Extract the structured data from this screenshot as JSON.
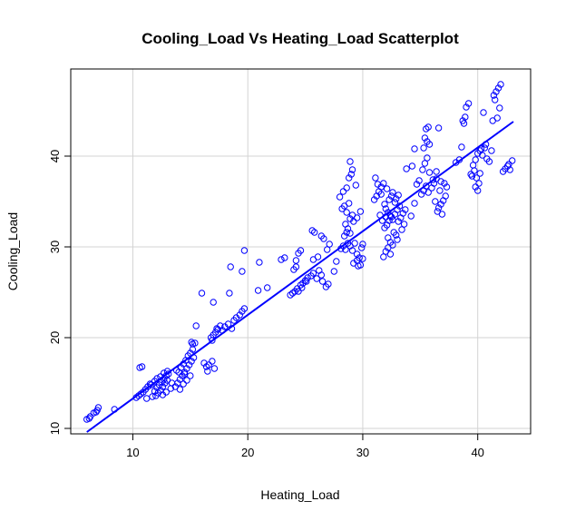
{
  "chart_data": {
    "type": "scatter",
    "title": "Cooling_Load Vs Heating_Load Scatterplot",
    "xlabel": "Heating_Load",
    "ylabel": "Cooling_Load",
    "xlim": [
      4.6,
      44.6
    ],
    "ylim": [
      9.4,
      49.6
    ],
    "xticks": [
      10,
      20,
      30,
      40
    ],
    "yticks": [
      10,
      20,
      30,
      40
    ],
    "grid": true,
    "point_color": "#0000ff",
    "line_color": "#0000ff",
    "regression_line": {
      "x": [
        6.0,
        43.1
      ],
      "y": [
        9.6,
        43.8
      ]
    },
    "points": [
      [
        6.0,
        11.0
      ],
      [
        6.3,
        11.3
      ],
      [
        6.6,
        11.7
      ],
      [
        6.9,
        12.0
      ],
      [
        7.0,
        12.3
      ],
      [
        6.2,
        11.1
      ],
      [
        6.8,
        11.8
      ],
      [
        8.4,
        12.1
      ],
      [
        10.3,
        13.4
      ],
      [
        10.5,
        13.6
      ],
      [
        10.7,
        13.8
      ],
      [
        10.9,
        14.0
      ],
      [
        11.1,
        14.3
      ],
      [
        11.3,
        14.6
      ],
      [
        11.5,
        14.9
      ],
      [
        11.7,
        13.5
      ],
      [
        11.9,
        14.1
      ],
      [
        12.1,
        14.5
      ],
      [
        12.3,
        14.8
      ],
      [
        12.5,
        15.1
      ],
      [
        12.7,
        15.4
      ],
      [
        12.9,
        15.8
      ],
      [
        13.1,
        16.0
      ],
      [
        12.0,
        13.6
      ],
      [
        12.2,
        13.9
      ],
      [
        12.4,
        14.2
      ],
      [
        12.6,
        14.6
      ],
      [
        12.8,
        15.0
      ],
      [
        13.0,
        15.3
      ],
      [
        11.6,
        14.8
      ],
      [
        11.9,
        15.2
      ],
      [
        12.1,
        15.5
      ],
      [
        12.4,
        15.7
      ],
      [
        12.7,
        16.1
      ],
      [
        13.0,
        16.3
      ],
      [
        13.3,
        14.4
      ],
      [
        12.9,
        14.0
      ],
      [
        12.6,
        13.7
      ],
      [
        13.4,
        15.0
      ],
      [
        11.2,
        13.3
      ],
      [
        10.6,
        16.7
      ],
      [
        10.8,
        16.8
      ],
      [
        13.7,
        14.6
      ],
      [
        13.9,
        15.0
      ],
      [
        14.1,
        15.4
      ],
      [
        14.3,
        15.8
      ],
      [
        14.5,
        16.2
      ],
      [
        14.7,
        16.6
      ],
      [
        14.9,
        17.0
      ],
      [
        15.1,
        17.4
      ],
      [
        15.3,
        17.8
      ],
      [
        14.0,
        16.2
      ],
      [
        14.2,
        16.7
      ],
      [
        14.4,
        17.1
      ],
      [
        14.6,
        17.5
      ],
      [
        14.8,
        18.0
      ],
      [
        15.0,
        18.3
      ],
      [
        15.2,
        18.7
      ],
      [
        14.1,
        14.3
      ],
      [
        14.4,
        14.9
      ],
      [
        14.7,
        15.3
      ],
      [
        15.0,
        15.8
      ],
      [
        15.2,
        19.3
      ],
      [
        15.4,
        19.4
      ],
      [
        15.1,
        19.5
      ],
      [
        15.5,
        21.3
      ],
      [
        14.5,
        16.0
      ],
      [
        13.8,
        16.4
      ],
      [
        16.0,
        24.9
      ],
      [
        16.2,
        17.2
      ],
      [
        16.4,
        16.8
      ],
      [
        16.6,
        17.0
      ],
      [
        16.9,
        17.4
      ],
      [
        17.1,
        16.6
      ],
      [
        16.5,
        16.3
      ],
      [
        16.8,
        20.0
      ],
      [
        17.0,
        20.3
      ],
      [
        17.2,
        20.6
      ],
      [
        17.4,
        20.9
      ],
      [
        17.6,
        21.3
      ],
      [
        16.9,
        19.7
      ],
      [
        17.0,
        23.9
      ],
      [
        17.3,
        21.0
      ],
      [
        17.8,
        20.8
      ],
      [
        18.0,
        21.2
      ],
      [
        18.3,
        21.5
      ],
      [
        18.6,
        21.0
      ],
      [
        18.8,
        21.9
      ],
      [
        19.0,
        22.2
      ],
      [
        19.3,
        22.5
      ],
      [
        19.5,
        22.9
      ],
      [
        19.7,
        23.2
      ],
      [
        18.4,
        24.9
      ],
      [
        18.5,
        27.8
      ],
      [
        19.5,
        27.3
      ],
      [
        19.7,
        29.6
      ],
      [
        20.9,
        25.2
      ],
      [
        21.0,
        28.3
      ],
      [
        21.7,
        25.5
      ],
      [
        22.9,
        28.6
      ],
      [
        23.2,
        28.8
      ],
      [
        23.7,
        24.7
      ],
      [
        23.9,
        24.9
      ],
      [
        24.1,
        25.1
      ],
      [
        24.3,
        25.4
      ],
      [
        24.6,
        25.8
      ],
      [
        24.8,
        26.0
      ],
      [
        25.0,
        26.3
      ],
      [
        25.2,
        26.6
      ],
      [
        24.4,
        25.1
      ],
      [
        24.7,
        25.5
      ],
      [
        25.1,
        26.2
      ],
      [
        24.0,
        27.5
      ],
      [
        24.2,
        27.8
      ],
      [
        24.4,
        29.3
      ],
      [
        24.6,
        29.6
      ],
      [
        24.2,
        28.5
      ],
      [
        25.5,
        26.8
      ],
      [
        25.7,
        27.1
      ],
      [
        26.0,
        26.5
      ],
      [
        26.2,
        27.4
      ],
      [
        26.4,
        26.9
      ],
      [
        25.6,
        31.8
      ],
      [
        25.8,
        31.6
      ],
      [
        25.7,
        28.6
      ],
      [
        26.1,
        28.9
      ],
      [
        26.4,
        31.2
      ],
      [
        26.6,
        30.9
      ],
      [
        26.9,
        29.7
      ],
      [
        27.1,
        30.3
      ],
      [
        26.8,
        25.6
      ],
      [
        27.0,
        25.9
      ],
      [
        26.5,
        26.2
      ],
      [
        27.5,
        27.3
      ],
      [
        27.7,
        28.4
      ],
      [
        28.1,
        29.8
      ],
      [
        28.3,
        30.1
      ],
      [
        28.5,
        29.7
      ],
      [
        28.7,
        30.4
      ],
      [
        28.9,
        30.1
      ],
      [
        29.1,
        29.6
      ],
      [
        29.3,
        30.4
      ],
      [
        29.5,
        29.2
      ],
      [
        29.7,
        28.8
      ],
      [
        29.9,
        29.9
      ],
      [
        30.0,
        30.3
      ],
      [
        28.2,
        34.2
      ],
      [
        28.4,
        34.5
      ],
      [
        28.6,
        33.8
      ],
      [
        28.8,
        34.8
      ],
      [
        28.9,
        33.1
      ],
      [
        29.1,
        33.5
      ],
      [
        28.5,
        32.5
      ],
      [
        28.7,
        32.0
      ],
      [
        28.9,
        31.5
      ],
      [
        29.2,
        32.8
      ],
      [
        29.5,
        33.2
      ],
      [
        29.8,
        33.9
      ],
      [
        28.8,
        37.6
      ],
      [
        29.0,
        38.0
      ],
      [
        28.9,
        39.4
      ],
      [
        29.1,
        38.5
      ],
      [
        28.4,
        31.2
      ],
      [
        28.6,
        31.6
      ],
      [
        29.2,
        28.2
      ],
      [
        29.5,
        28.5
      ],
      [
        29.8,
        28.0
      ],
      [
        30.0,
        28.7
      ],
      [
        29.6,
        27.9
      ],
      [
        28.0,
        35.5
      ],
      [
        28.3,
        36.1
      ],
      [
        28.6,
        36.5
      ],
      [
        29.4,
        36.8
      ],
      [
        31.0,
        35.2
      ],
      [
        31.2,
        35.6
      ],
      [
        31.4,
        36.1
      ],
      [
        31.6,
        36.6
      ],
      [
        31.8,
        37.0
      ],
      [
        31.1,
        37.6
      ],
      [
        31.3,
        36.9
      ],
      [
        31.6,
        35.8
      ],
      [
        31.9,
        34.7
      ],
      [
        32.0,
        34.2
      ],
      [
        32.2,
        33.8
      ],
      [
        32.4,
        33.4
      ],
      [
        32.6,
        33.0
      ],
      [
        32.8,
        33.6
      ],
      [
        33.0,
        34.1
      ],
      [
        33.2,
        34.5
      ],
      [
        32.1,
        32.4
      ],
      [
        32.3,
        32.9
      ],
      [
        32.5,
        33.3
      ],
      [
        32.7,
        31.6
      ],
      [
        32.9,
        31.3
      ],
      [
        32.2,
        31.0
      ],
      [
        32.4,
        30.5
      ],
      [
        32.6,
        30.2
      ],
      [
        33.1,
        32.8
      ],
      [
        33.3,
        33.2
      ],
      [
        33.5,
        33.7
      ],
      [
        33.7,
        34.1
      ],
      [
        32.3,
        35.2
      ],
      [
        32.5,
        35.6
      ],
      [
        32.1,
        36.4
      ],
      [
        32.8,
        34.9
      ],
      [
        31.5,
        33.5
      ],
      [
        31.7,
        32.9
      ],
      [
        32.0,
        29.5
      ],
      [
        32.2,
        29.9
      ],
      [
        32.4,
        29.2
      ],
      [
        31.8,
        28.9
      ],
      [
        33.0,
        30.8
      ],
      [
        32.6,
        36.0
      ],
      [
        32.9,
        35.3
      ],
      [
        33.1,
        35.7
      ],
      [
        33.4,
        31.9
      ],
      [
        32.0,
        33.3
      ],
      [
        31.9,
        32.1
      ],
      [
        33.6,
        32.5
      ],
      [
        34.2,
        33.4
      ],
      [
        34.5,
        34.8
      ],
      [
        34.7,
        36.9
      ],
      [
        34.9,
        37.3
      ],
      [
        35.1,
        35.8
      ],
      [
        35.3,
        36.2
      ],
      [
        35.5,
        36.7
      ],
      [
        35.2,
        38.5
      ],
      [
        35.4,
        39.2
      ],
      [
        35.6,
        39.8
      ],
      [
        35.8,
        38.2
      ],
      [
        35.7,
        36.0
      ],
      [
        36.0,
        36.5
      ],
      [
        36.2,
        37.0
      ],
      [
        36.4,
        37.5
      ],
      [
        36.6,
        34.3
      ],
      [
        36.8,
        34.7
      ],
      [
        37.0,
        35.1
      ],
      [
        37.2,
        35.6
      ],
      [
        36.5,
        33.9
      ],
      [
        36.9,
        33.6
      ],
      [
        36.3,
        35.0
      ],
      [
        36.7,
        36.2
      ],
      [
        36.1,
        37.4
      ],
      [
        36.4,
        38.3
      ],
      [
        36.8,
        37.2
      ],
      [
        37.1,
        37.0
      ],
      [
        37.3,
        36.6
      ],
      [
        35.5,
        43.0
      ],
      [
        35.7,
        43.2
      ],
      [
        36.6,
        43.1
      ],
      [
        35.6,
        41.6
      ],
      [
        35.8,
        41.3
      ],
      [
        35.3,
        40.9
      ],
      [
        35.4,
        42.0
      ],
      [
        34.3,
        38.9
      ],
      [
        34.5,
        40.8
      ],
      [
        33.8,
        38.6
      ],
      [
        38.1,
        39.3
      ],
      [
        38.4,
        39.6
      ],
      [
        38.6,
        41.0
      ],
      [
        38.7,
        43.9
      ],
      [
        38.9,
        44.3
      ],
      [
        39.0,
        45.4
      ],
      [
        39.2,
        45.8
      ],
      [
        38.8,
        43.6
      ],
      [
        39.4,
        38.0
      ],
      [
        39.5,
        37.8
      ],
      [
        39.7,
        38.4
      ],
      [
        39.9,
        37.6
      ],
      [
        40.1,
        37.0
      ],
      [
        39.8,
        36.6
      ],
      [
        40.0,
        36.2
      ],
      [
        40.2,
        38.1
      ],
      [
        39.6,
        39.0
      ],
      [
        39.8,
        39.6
      ],
      [
        40.0,
        40.3
      ],
      [
        40.2,
        40.6
      ],
      [
        40.4,
        40.1
      ],
      [
        40.6,
        40.9
      ],
      [
        40.8,
        39.7
      ],
      [
        41.0,
        39.4
      ],
      [
        41.2,
        40.6
      ],
      [
        40.5,
        44.8
      ],
      [
        41.3,
        43.9
      ],
      [
        41.5,
        46.2
      ],
      [
        41.6,
        47.1
      ],
      [
        41.8,
        47.5
      ],
      [
        42.0,
        47.9
      ],
      [
        41.4,
        46.7
      ],
      [
        41.9,
        45.3
      ],
      [
        41.7,
        44.2
      ],
      [
        42.2,
        38.3
      ],
      [
        42.4,
        38.6
      ],
      [
        42.6,
        38.9
      ],
      [
        42.8,
        38.5
      ],
      [
        43.0,
        39.5
      ],
      [
        42.7,
        39.1
      ],
      [
        40.3,
        40.8
      ],
      [
        40.7,
        41.3
      ]
    ]
  }
}
